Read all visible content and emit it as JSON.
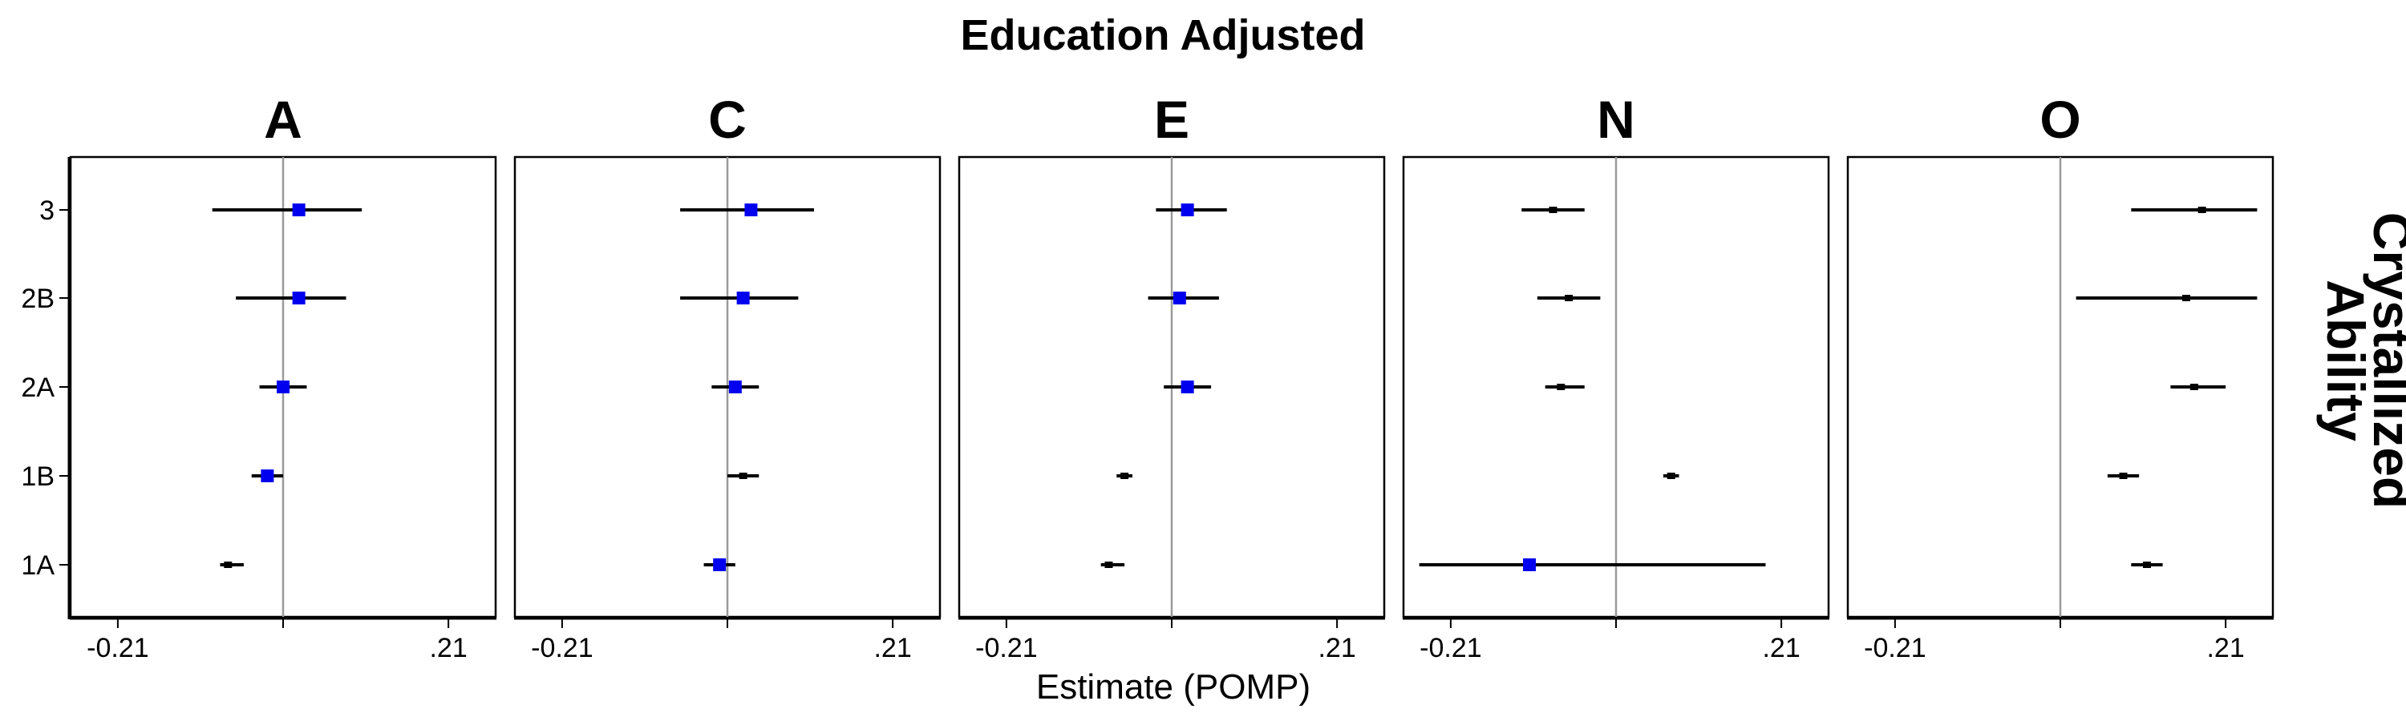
{
  "chart_data": {
    "type": "forest",
    "title": "Education Adjusted",
    "xlabel": "Estimate (POMP)",
    "strip_label_right": [
      "Crystallized",
      "Ability"
    ],
    "categories": [
      "3",
      "2B",
      "2A",
      "1B",
      "1A"
    ],
    "x_ticks": [
      {
        "value": -0.21,
        "label": "-0.21"
      },
      {
        "value": 0.21,
        "label": ".21"
      }
    ],
    "xlim": [
      -0.27,
      0.27
    ],
    "reference_line": 0,
    "colors": {
      "significant": "#0000ee",
      "nonsignificant": "#000000",
      "ref_line": "#9a9a9a"
    },
    "panels": [
      {
        "name": "A",
        "points": [
          {
            "category": "3",
            "estimate": 0.02,
            "lower": -0.09,
            "upper": 0.1,
            "highlight": true
          },
          {
            "category": "2B",
            "estimate": 0.02,
            "lower": -0.06,
            "upper": 0.08,
            "highlight": true
          },
          {
            "category": "2A",
            "estimate": 0.0,
            "lower": -0.03,
            "upper": 0.03,
            "highlight": true
          },
          {
            "category": "1B",
            "estimate": -0.02,
            "lower": -0.04,
            "upper": 0.0,
            "highlight": true
          },
          {
            "category": "1A",
            "estimate": -0.07,
            "lower": -0.08,
            "upper": -0.05,
            "highlight": false
          }
        ]
      },
      {
        "name": "C",
        "points": [
          {
            "category": "3",
            "estimate": 0.03,
            "lower": -0.06,
            "upper": 0.11,
            "highlight": true
          },
          {
            "category": "2B",
            "estimate": 0.02,
            "lower": -0.06,
            "upper": 0.09,
            "highlight": true
          },
          {
            "category": "2A",
            "estimate": 0.01,
            "lower": -0.02,
            "upper": 0.04,
            "highlight": true
          },
          {
            "category": "1B",
            "estimate": 0.02,
            "lower": 0.0,
            "upper": 0.04,
            "highlight": false
          },
          {
            "category": "1A",
            "estimate": -0.01,
            "lower": -0.03,
            "upper": 0.01,
            "highlight": true
          }
        ]
      },
      {
        "name": "E",
        "points": [
          {
            "category": "3",
            "estimate": 0.02,
            "lower": -0.02,
            "upper": 0.07,
            "highlight": true
          },
          {
            "category": "2B",
            "estimate": 0.01,
            "lower": -0.03,
            "upper": 0.06,
            "highlight": true
          },
          {
            "category": "2A",
            "estimate": 0.02,
            "lower": -0.01,
            "upper": 0.05,
            "highlight": true
          },
          {
            "category": "1B",
            "estimate": -0.06,
            "lower": -0.07,
            "upper": -0.05,
            "highlight": false
          },
          {
            "category": "1A",
            "estimate": -0.08,
            "lower": -0.09,
            "upper": -0.06,
            "highlight": false
          }
        ]
      },
      {
        "name": "N",
        "points": [
          {
            "category": "3",
            "estimate": -0.08,
            "lower": -0.12,
            "upper": -0.04,
            "highlight": false
          },
          {
            "category": "2B",
            "estimate": -0.06,
            "lower": -0.1,
            "upper": -0.02,
            "highlight": false
          },
          {
            "category": "2A",
            "estimate": -0.07,
            "lower": -0.09,
            "upper": -0.04,
            "highlight": false
          },
          {
            "category": "1B",
            "estimate": 0.07,
            "lower": 0.06,
            "upper": 0.08,
            "highlight": false
          },
          {
            "category": "1A",
            "estimate": -0.11,
            "lower": -0.25,
            "upper": 0.19,
            "highlight": true
          }
        ]
      },
      {
        "name": "O",
        "points": [
          {
            "category": "3",
            "estimate": 0.18,
            "lower": 0.09,
            "upper": 0.25,
            "highlight": false
          },
          {
            "category": "2B",
            "estimate": 0.16,
            "lower": 0.02,
            "upper": 0.25,
            "highlight": false
          },
          {
            "category": "2A",
            "estimate": 0.17,
            "lower": 0.14,
            "upper": 0.21,
            "highlight": false
          },
          {
            "category": "1B",
            "estimate": 0.08,
            "lower": 0.06,
            "upper": 0.1,
            "highlight": false
          },
          {
            "category": "1A",
            "estimate": 0.11,
            "lower": 0.09,
            "upper": 0.13,
            "highlight": false
          }
        ]
      }
    ]
  }
}
